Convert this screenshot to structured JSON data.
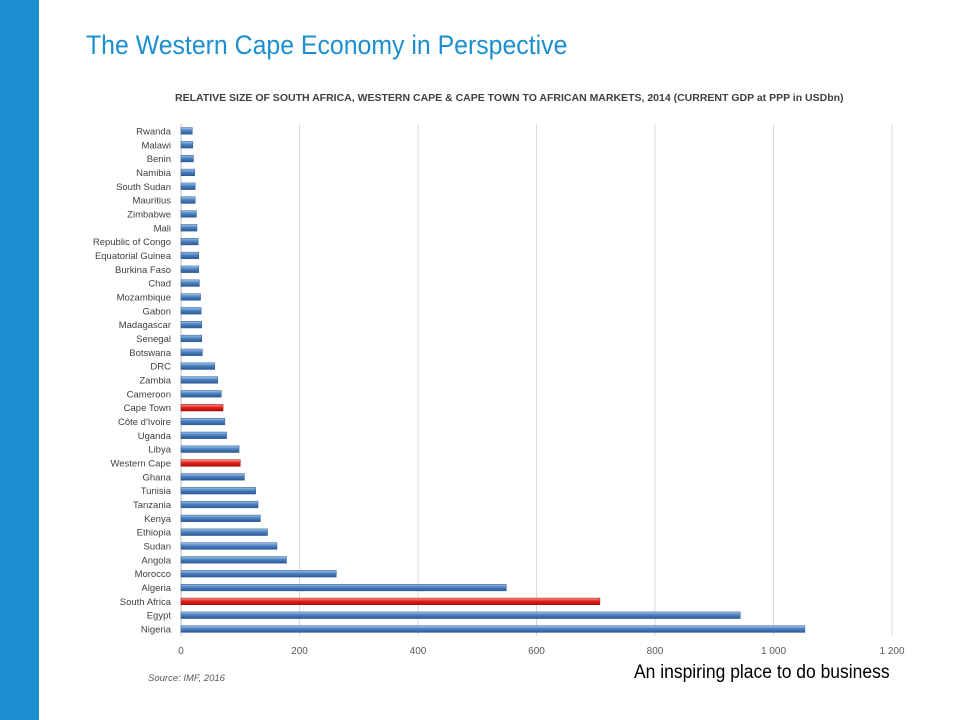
{
  "page": {
    "title": "The Western Cape Economy in Perspective",
    "source": "Source: IMF, 2016",
    "tagline": "An inspiring place to do business",
    "accent_color": "#1b8fd0"
  },
  "chart_data": {
    "type": "bar",
    "orientation": "horizontal",
    "title": "RELATIVE SIZE OF SOUTH AFRICA, WESTERN CAPE & CAPE TOWN TO AFRICAN MARKETS, 2014 (CURRENT GDP at PPP in USDbn)",
    "xlabel": "",
    "ylabel": "",
    "xlim": [
      0,
      1200
    ],
    "xticks": [
      0,
      200,
      400,
      600,
      800,
      1000,
      1200
    ],
    "xtick_labels": [
      "0",
      "200",
      "400",
      "600",
      "800",
      "1 000",
      "1 200"
    ],
    "grid": "vertical",
    "categories": [
      "Rwanda",
      "Malawi",
      "Benin",
      "Namibia",
      "South Sudan",
      "Mauritius",
      "Zimbabwe",
      "Mali",
      "Republic of Congo",
      "Equatorial Guinea",
      "Burkina Faso",
      "Chad",
      "Mozambique",
      "Gabon",
      "Madagascar",
      "Senegal",
      "Botswana",
      "DRC",
      "Zambia",
      "Cameroon",
      "Cape Town",
      "Côte d'Ivoire",
      "Uganda",
      "Libya",
      "Western Cape",
      "Ghana",
      "Tunisia",
      "Tanzania",
      "Kenya",
      "Ethiopia",
      "Sudan",
      "Angola",
      "Morocco",
      "Algeria",
      "South Africa",
      "Egypt",
      "Nigeria"
    ],
    "values": [
      19,
      20,
      21,
      23,
      24,
      24,
      26,
      27,
      29,
      30,
      30,
      31,
      33,
      34,
      35,
      35,
      36,
      57,
      62,
      68,
      71,
      74,
      77,
      98,
      100,
      107,
      126,
      130,
      134,
      146,
      162,
      178,
      262,
      549,
      707,
      944,
      1053
    ],
    "highlighted": [
      "Cape Town",
      "Western Cape",
      "South Africa"
    ],
    "colors": {
      "default": "#4f81bd",
      "highlight": "#e8201a"
    }
  }
}
